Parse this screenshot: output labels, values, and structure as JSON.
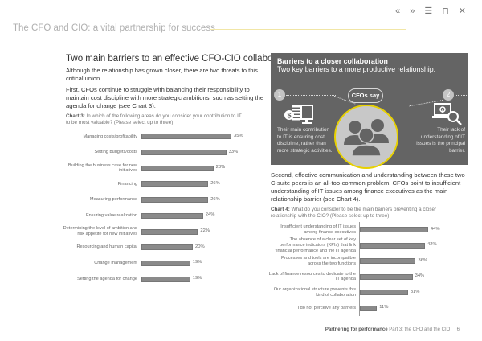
{
  "toolbar": {
    "icons": [
      {
        "name": "previous-page-icon",
        "glyph": "«"
      },
      {
        "name": "next-page-icon",
        "glyph": "»"
      },
      {
        "name": "contents-list-icon",
        "glyph": "☰"
      },
      {
        "name": "print-icon",
        "glyph": "⊓"
      },
      {
        "name": "close-icon",
        "glyph": "✕"
      }
    ]
  },
  "header": {
    "title": "The CFO and CIO: a vital partnership for success"
  },
  "left": {
    "heading": "Two main barriers to an effective CFO-CIO collaboration",
    "para1": "Although the relationship has grown closer, there are two threats to this critical union.",
    "para2": "First, CFOs continue to struggle with balancing their responsibility to maintain cost discipline with more strategic ambitions, such as setting the agenda for change (see Chart 3).",
    "chart_caption_label": "Chart 3:",
    "chart_caption_text": "In which of the following areas do you consider your contribution to IT to be most valuable? (Please select up to three)"
  },
  "panel": {
    "title": "Barriers to a closer collaboration",
    "subtitle": "Two key barriers to a more productive relationship.",
    "num1": "1",
    "num2": "2",
    "bubble": "CFOs say",
    "text1": "Their main contribution to IT is ensuring cost discipline, rather than more strategic activities.",
    "text2": "Their lack of understanding of IT issues is the principal barrier."
  },
  "right": {
    "para": "Second, effective communication and understanding between these two C-suite peers is an all-too-common problem. CFOs point to insufficient understanding of IT issues among finance executives as the main relationship barrier (see Chart 4).",
    "chart_caption_label": "Chart 4:",
    "chart_caption_text": "What do you consider to be the main barriers preventing a closer relationship with the CIO? (Please select up to three)"
  },
  "chart_data": [
    {
      "type": "bar",
      "orientation": "horizontal",
      "title": "Chart 3: In which of the following areas do you consider your contribution to IT to be most valuable? (Please select up to three)",
      "categories": [
        "Managing costs/profitability",
        "Setting budgets/costs",
        "Building the business case for new initiatives",
        "Financing",
        "Measuring performance",
        "Ensuring value realization",
        "Determining the level of ambition and risk appetite for new initiatives",
        "Resourcing and human capital",
        "Change management",
        "Setting the agenda for change"
      ],
      "values": [
        35,
        33,
        28,
        26,
        26,
        24,
        22,
        20,
        19,
        19
      ],
      "value_labels": [
        "35%",
        "33%",
        "28%",
        "26%",
        "26%",
        "24%",
        "22%",
        "20%",
        "19%",
        "19%"
      ],
      "unit": "%",
      "xlim": [
        0,
        40
      ],
      "grid": false
    },
    {
      "type": "bar",
      "orientation": "horizontal",
      "title": "Chart 4: What do you consider to be the main barriers preventing a closer relationship with the CIO? (Please select up to three)",
      "categories": [
        "Insufficient understanding of IT issues among finance executives",
        "The absence of a clear set of key performance indicators (KPIs) that link financial performance and the IT agenda",
        "Processes and tools are incompatible across the two functions",
        "Lack of finance resources to dedicate to the IT agenda",
        "Our organizational structure prevents this kind of collaboration",
        "I do not perceive any barriers"
      ],
      "values": [
        44,
        42,
        36,
        34,
        31,
        11
      ],
      "value_labels": [
        "44%",
        "42%",
        "36%",
        "34%",
        "31%",
        "11%"
      ],
      "unit": "%",
      "xlim": [
        0,
        50
      ],
      "grid": false
    }
  ],
  "footer": {
    "publication": "Partnering for performance",
    "section": "Part 3: the CFO and the CIO",
    "page_number": "6"
  }
}
